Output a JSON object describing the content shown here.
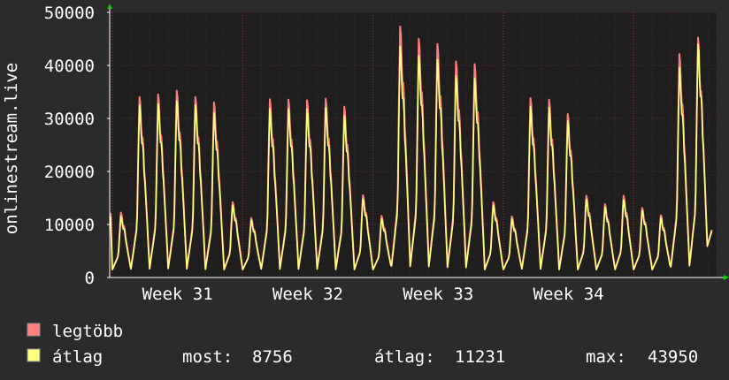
{
  "chart_data": {
    "type": "line",
    "ylabel": "onlinestream.live",
    "ylim": [
      0,
      50000
    ],
    "y_ticks": [
      0,
      10000,
      20000,
      30000,
      40000,
      50000
    ],
    "y_tick_labels": [
      "0",
      "10000",
      "20000",
      "30000",
      "40000",
      "50000"
    ],
    "x_tick_labels": [
      "Week 31",
      "Week 32",
      "Week 33",
      "Week 34"
    ],
    "grid": true,
    "series": [
      {
        "name": "legtöbb",
        "color": "#ff7f7f",
        "daily_peaks": [
          12200,
          34000,
          34500,
          35200,
          34000,
          33000,
          14200,
          11200,
          33600,
          33500,
          33400,
          33700,
          32200,
          15500,
          11600,
          47300,
          45000,
          44000,
          40700,
          40200,
          14200,
          11500,
          33800,
          33500,
          30800,
          15400,
          13800,
          15400,
          13100,
          11700,
          42100,
          45200
        ],
        "start_value": 12200,
        "end_value": 9000
      },
      {
        "name": "átlag",
        "color": "#ffff7f",
        "daily_peaks": [
          11500,
          32500,
          32700,
          33300,
          32500,
          31000,
          13600,
          10800,
          31800,
          31800,
          31700,
          32000,
          30500,
          14800,
          11000,
          43500,
          41800,
          41000,
          38000,
          37500,
          13600,
          11000,
          32200,
          32000,
          29500,
          14700,
          13300,
          14600,
          12600,
          11200,
          39500,
          43950
        ],
        "start_value": 11500,
        "end_value": 8756
      }
    ]
  },
  "legend": {
    "max_label": "legtöbb",
    "avg_label": "átlag",
    "stats": [
      {
        "label": "most:",
        "value": "8756"
      },
      {
        "label": "átlag:",
        "value": "11231"
      },
      {
        "label": "max:",
        "value": "43950"
      }
    ]
  },
  "colors": {
    "background": "#2b2b2b",
    "plot_background": "#1e1e1e",
    "grid": "#5a2a2a",
    "axis": "#ffffff",
    "arrow": "#00cc00",
    "max": "#ff7f7f",
    "avg": "#ffff7f"
  }
}
